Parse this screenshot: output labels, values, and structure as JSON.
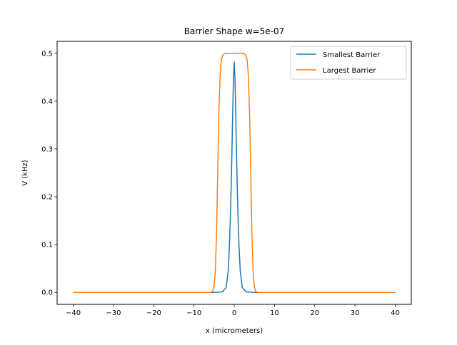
{
  "chart_data": {
    "type": "line",
    "title": "Barrier Shape w=5e-07",
    "xlabel": "x (micrometers)",
    "ylabel": "V (kHz)",
    "xlim": [
      -44,
      44
    ],
    "ylim": [
      -0.025,
      0.525
    ],
    "xticks": [
      -40,
      -30,
      -20,
      -10,
      0,
      10,
      20,
      30,
      40
    ],
    "xtick_labels": [
      "−40",
      "−30",
      "−20",
      "−10",
      "0",
      "10",
      "20",
      "30",
      "40"
    ],
    "yticks": [
      0.0,
      0.1,
      0.2,
      0.3,
      0.4,
      0.5
    ],
    "ytick_labels": [
      "0.0",
      "0.1",
      "0.2",
      "0.3",
      "0.4",
      "0.5"
    ],
    "grid": false,
    "legend_position": "top-right",
    "series": [
      {
        "name": "Smallest Barrier",
        "color": "#1f77b4",
        "x": [
          -40,
          -5,
          -3,
          -2,
          -1.5,
          -1.2,
          -1.0,
          -0.8,
          -0.6,
          -0.4,
          -0.2,
          0,
          0.2,
          0.4,
          0.6,
          0.8,
          1.0,
          1.2,
          1.5,
          2,
          3,
          5,
          40
        ],
        "y": [
          0.0,
          0.0,
          0.001,
          0.01,
          0.045,
          0.095,
          0.145,
          0.205,
          0.28,
          0.365,
          0.445,
          0.482,
          0.445,
          0.365,
          0.28,
          0.205,
          0.145,
          0.095,
          0.045,
          0.01,
          0.001,
          0.0,
          0.0
        ]
      },
      {
        "name": "Largest Barrier",
        "color": "#ff7f0e",
        "x": [
          -40,
          -5.8,
          -5.3,
          -5.0,
          -4.7,
          -4.4,
          -4.1,
          -3.8,
          -3.5,
          -3.2,
          -2.8,
          -2.2,
          0,
          2.2,
          2.8,
          3.2,
          3.5,
          3.8,
          4.1,
          4.4,
          4.7,
          5.0,
          5.3,
          5.8,
          40
        ],
        "y": [
          0.0,
          0.0,
          0.003,
          0.012,
          0.045,
          0.12,
          0.25,
          0.38,
          0.455,
          0.487,
          0.497,
          0.5,
          0.5,
          0.5,
          0.497,
          0.487,
          0.455,
          0.38,
          0.25,
          0.12,
          0.045,
          0.012,
          0.003,
          0.0,
          0.0
        ]
      }
    ]
  }
}
